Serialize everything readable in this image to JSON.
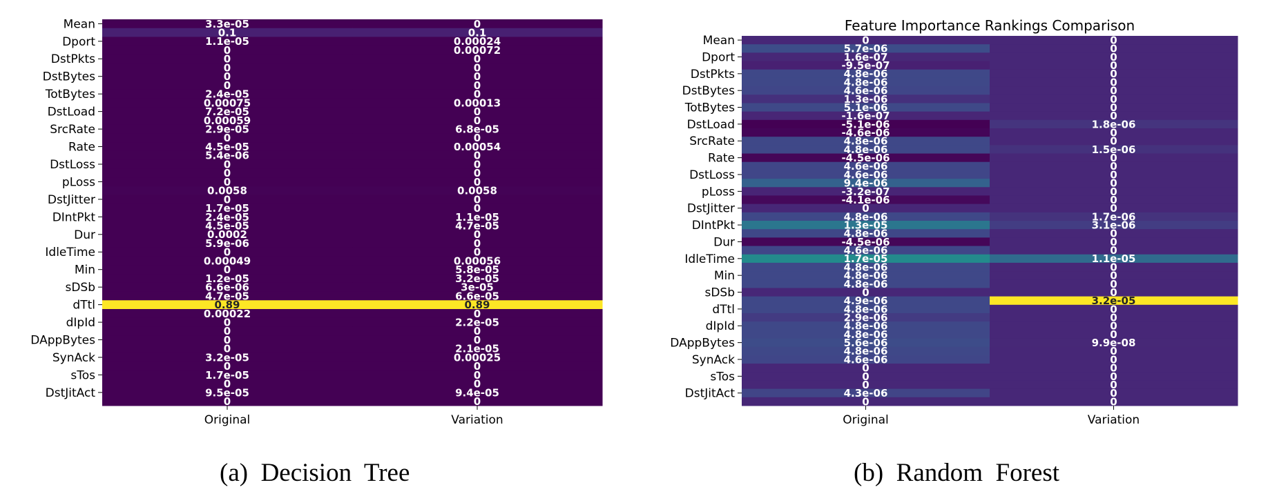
{
  "captions": [
    "(a)  Decision  Tree",
    "(b)  Random  Forest"
  ],
  "chart_data": [
    {
      "type": "heatmap",
      "title": "",
      "columns": [
        "Original",
        "Variation"
      ],
      "colormap": "viridis",
      "range": [
        0,
        0.89
      ],
      "tick_labels": [
        "Mean",
        "Dport",
        "DstPkts",
        "DstBytes",
        "TotBytes",
        "DstLoad",
        "SrcRate",
        "Rate",
        "DstLoss",
        "pLoss",
        "DstJitter",
        "DIntPkt",
        "Dur",
        "IdleTime",
        "Min",
        "sDSb",
        "dTtl",
        "dIpId",
        "DAppBytes",
        "SynAck",
        "sTos",
        "DstJitAct"
      ],
      "rows": 44,
      "values": [
        [
          3.3e-05,
          0
        ],
        [
          0.1,
          0.1
        ],
        [
          1.1e-05,
          0.00024
        ],
        [
          0,
          0.00072
        ],
        [
          0,
          0
        ],
        [
          0,
          0
        ],
        [
          0,
          0
        ],
        [
          0,
          0
        ],
        [
          2.4e-05,
          0
        ],
        [
          0.00075,
          0.00013
        ],
        [
          7.2e-05,
          0
        ],
        [
          0.00059,
          0
        ],
        [
          2.9e-05,
          6.8e-05
        ],
        [
          0,
          0
        ],
        [
          4.5e-05,
          0.00054
        ],
        [
          5.4e-06,
          0
        ],
        [
          0,
          0
        ],
        [
          0,
          0
        ],
        [
          0,
          0
        ],
        [
          0.0058,
          0.0058
        ],
        [
          0,
          0
        ],
        [
          1.7e-05,
          0
        ],
        [
          2.4e-05,
          1.1e-05
        ],
        [
          4.5e-05,
          4.7e-05
        ],
        [
          0.0002,
          0
        ],
        [
          5.9e-06,
          0
        ],
        [
          0,
          0
        ],
        [
          0.00049,
          0.00056
        ],
        [
          0,
          5.8e-05
        ],
        [
          1.2e-05,
          3.2e-05
        ],
        [
          6.6e-06,
          3e-05
        ],
        [
          4.7e-05,
          6.6e-05
        ],
        [
          0.89,
          0.89
        ],
        [
          0.00022,
          0
        ],
        [
          0,
          2.2e-05
        ],
        [
          0,
          0
        ],
        [
          0,
          0
        ],
        [
          0,
          2.1e-05
        ],
        [
          3.2e-05,
          0.00025
        ],
        [
          0,
          0
        ],
        [
          1.7e-05,
          0
        ],
        [
          0,
          0
        ],
        [
          9.5e-05,
          9.4e-05
        ],
        [
          0,
          0
        ]
      ],
      "labels": [
        [
          "3.3e-05",
          "0"
        ],
        [
          "0.1",
          "0.1"
        ],
        [
          "1.1e-05",
          "0.00024"
        ],
        [
          "0",
          "0.00072"
        ],
        [
          "0",
          "0"
        ],
        [
          "0",
          "0"
        ],
        [
          "0",
          "0"
        ],
        [
          "0",
          "0"
        ],
        [
          "2.4e-05",
          "0"
        ],
        [
          "0.00075",
          "0.00013"
        ],
        [
          "7.2e-05",
          "0"
        ],
        [
          "0.00059",
          "0"
        ],
        [
          "2.9e-05",
          "6.8e-05"
        ],
        [
          "0",
          "0"
        ],
        [
          "4.5e-05",
          "0.00054"
        ],
        [
          "5.4e-06",
          "0"
        ],
        [
          "0",
          "0"
        ],
        [
          "0",
          "0"
        ],
        [
          "0",
          "0"
        ],
        [
          "0.0058",
          "0.0058"
        ],
        [
          "0",
          "0"
        ],
        [
          "1.7e-05",
          "0"
        ],
        [
          "2.4e-05",
          "1.1e-05"
        ],
        [
          "4.5e-05",
          "4.7e-05"
        ],
        [
          "0.0002",
          "0"
        ],
        [
          "5.9e-06",
          "0"
        ],
        [
          "0",
          "0"
        ],
        [
          "0.00049",
          "0.00056"
        ],
        [
          "0",
          "5.8e-05"
        ],
        [
          "1.2e-05",
          "3.2e-05"
        ],
        [
          "6.6e-06",
          "3e-05"
        ],
        [
          "4.7e-05",
          "6.6e-05"
        ],
        [
          "0.89",
          "0.89"
        ],
        [
          "0.00022",
          "0"
        ],
        [
          "0",
          "2.2e-05"
        ],
        [
          "0",
          "0"
        ],
        [
          "0",
          "0"
        ],
        [
          "0",
          "2.1e-05"
        ],
        [
          "3.2e-05",
          "0.00025"
        ],
        [
          "0",
          "0"
        ],
        [
          "1.7e-05",
          "0"
        ],
        [
          "0",
          "0"
        ],
        [
          "9.5e-05",
          "9.4e-05"
        ],
        [
          "0",
          "0"
        ]
      ]
    },
    {
      "type": "heatmap",
      "title": "Feature Importance Rankings Comparison",
      "columns": [
        "Original",
        "Variation"
      ],
      "colormap": "viridis",
      "range": [
        -5.1e-06,
        3.2e-05
      ],
      "tick_labels": [
        "Mean",
        "Dport",
        "DstPkts",
        "DstBytes",
        "TotBytes",
        "DstLoad",
        "SrcRate",
        "Rate",
        "DstLoss",
        "pLoss",
        "DstJitter",
        "DIntPkt",
        "Dur",
        "IdleTime",
        "Min",
        "sDSb",
        "dTtl",
        "dIpId",
        "DAppBytes",
        "SynAck",
        "sTos",
        "DstJitAct"
      ],
      "rows": 44,
      "values": [
        [
          0,
          0
        ],
        [
          5.7e-06,
          0
        ],
        [
          1.6e-07,
          0
        ],
        [
          -9.5e-07,
          0
        ],
        [
          4.8e-06,
          0
        ],
        [
          4.8e-06,
          0
        ],
        [
          4.6e-06,
          0
        ],
        [
          1.3e-06,
          0
        ],
        [
          5.1e-06,
          0
        ],
        [
          -1.6e-07,
          0
        ],
        [
          -5.1e-06,
          1.8e-06
        ],
        [
          -4.6e-06,
          0
        ],
        [
          4.8e-06,
          0
        ],
        [
          4.8e-06,
          1.5e-06
        ],
        [
          -4.5e-06,
          0
        ],
        [
          4.6e-06,
          0
        ],
        [
          4.6e-06,
          0
        ],
        [
          9.4e-06,
          0
        ],
        [
          -3.2e-07,
          0
        ],
        [
          -4.1e-06,
          0
        ],
        [
          0,
          0
        ],
        [
          4.8e-06,
          1.7e-06
        ],
        [
          1.3e-05,
          3.1e-06
        ],
        [
          4.8e-06,
          0
        ],
        [
          -4.5e-06,
          0
        ],
        [
          4.6e-06,
          0
        ],
        [
          1.7e-05,
          1.1e-05
        ],
        [
          4.8e-06,
          0
        ],
        [
          4.8e-06,
          0
        ],
        [
          4.8e-06,
          0
        ],
        [
          0,
          0
        ],
        [
          4.9e-06,
          3.2e-05
        ],
        [
          4.8e-06,
          0
        ],
        [
          2.9e-06,
          0
        ],
        [
          4.8e-06,
          0
        ],
        [
          4.8e-06,
          0
        ],
        [
          5.6e-06,
          9.9e-08
        ],
        [
          4.8e-06,
          0
        ],
        [
          4.6e-06,
          0
        ],
        [
          0,
          0
        ],
        [
          0,
          0
        ],
        [
          0,
          0
        ],
        [
          4.3e-06,
          0
        ],
        [
          0,
          0
        ]
      ],
      "labels": [
        [
          "0",
          "0"
        ],
        [
          "5.7e-06",
          "0"
        ],
        [
          "1.6e-07",
          "0"
        ],
        [
          "-9.5e-07",
          "0"
        ],
        [
          "4.8e-06",
          "0"
        ],
        [
          "4.8e-06",
          "0"
        ],
        [
          "4.6e-06",
          "0"
        ],
        [
          "1.3e-06",
          "0"
        ],
        [
          "5.1e-06",
          "0"
        ],
        [
          "-1.6e-07",
          "0"
        ],
        [
          "-5.1e-06",
          "1.8e-06"
        ],
        [
          "-4.6e-06",
          "0"
        ],
        [
          "4.8e-06",
          "0"
        ],
        [
          "4.8e-06",
          "1.5e-06"
        ],
        [
          "-4.5e-06",
          "0"
        ],
        [
          "4.6e-06",
          "0"
        ],
        [
          "4.6e-06",
          "0"
        ],
        [
          "9.4e-06",
          "0"
        ],
        [
          "-3.2e-07",
          "0"
        ],
        [
          "-4.1e-06",
          "0"
        ],
        [
          "0",
          "0"
        ],
        [
          "4.8e-06",
          "1.7e-06"
        ],
        [
          "1.3e-05",
          "3.1e-06"
        ],
        [
          "4.8e-06",
          "0"
        ],
        [
          "-4.5e-06",
          "0"
        ],
        [
          "4.6e-06",
          "0"
        ],
        [
          "1.7e-05",
          "1.1e-05"
        ],
        [
          "4.8e-06",
          "0"
        ],
        [
          "4.8e-06",
          "0"
        ],
        [
          "4.8e-06",
          "0"
        ],
        [
          "0",
          "0"
        ],
        [
          "4.9e-06",
          "3.2e-05"
        ],
        [
          "4.8e-06",
          "0"
        ],
        [
          "2.9e-06",
          "0"
        ],
        [
          "4.8e-06",
          "0"
        ],
        [
          "4.8e-06",
          "0"
        ],
        [
          "5.6e-06",
          "9.9e-08"
        ],
        [
          "4.8e-06",
          "0"
        ],
        [
          "4.6e-06",
          "0"
        ],
        [
          "0",
          "0"
        ],
        [
          "0",
          "0"
        ],
        [
          "0",
          "0"
        ],
        [
          "4.3e-06",
          "0"
        ],
        [
          "0",
          "0"
        ]
      ]
    }
  ]
}
